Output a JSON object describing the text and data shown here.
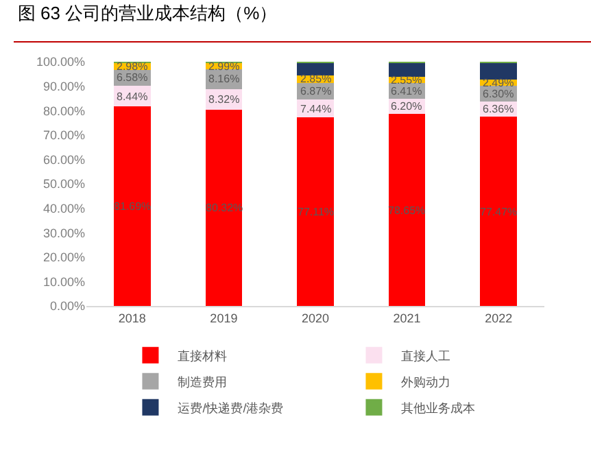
{
  "chart_data": {
    "type": "bar",
    "title": "图 63 公司的营业成本结构（%）",
    "stacked": true,
    "categories": [
      "2018",
      "2019",
      "2020",
      "2021",
      "2022"
    ],
    "ylim": [
      0,
      100
    ],
    "yticks": [
      {
        "value": 0,
        "label": "0.00%"
      },
      {
        "value": 10,
        "label": "10.00%"
      },
      {
        "value": 20,
        "label": "20.00%"
      },
      {
        "value": 30,
        "label": "30.00%"
      },
      {
        "value": 40,
        "label": "40.00%"
      },
      {
        "value": 50,
        "label": "50.00%"
      },
      {
        "value": 60,
        "label": "60.00%"
      },
      {
        "value": 70,
        "label": "70.00%"
      },
      {
        "value": 80,
        "label": "80.00%"
      },
      {
        "value": 90,
        "label": "90.00%"
      },
      {
        "value": 100,
        "label": "100.00%"
      }
    ],
    "grid": false,
    "legend": "bottom",
    "series": [
      {
        "name": "直接材料",
        "color": "#ff0000",
        "values": [
          81.69,
          80.32,
          77.11,
          78.65,
          77.47
        ],
        "value_labels": [
          "81.69%",
          "80.32%",
          "77.11%",
          "78.65%",
          "77.47%"
        ]
      },
      {
        "name": "直接人工",
        "color": "#fbe0ef",
        "values": [
          8.44,
          8.32,
          7.44,
          6.2,
          6.36
        ],
        "value_labels": [
          "8.44%",
          "8.32%",
          "7.44%",
          "6.20%",
          "6.36%"
        ]
      },
      {
        "name": "制造费用",
        "color": "#a6a6a6",
        "values": [
          6.58,
          8.16,
          6.87,
          6.41,
          6.3
        ],
        "value_labels": [
          "6.58%",
          "8.16%",
          "6.87%",
          "6.41%",
          "6.30%"
        ]
      },
      {
        "name": "外购动力",
        "color": "#ffc000",
        "values": [
          2.98,
          2.99,
          2.85,
          2.55,
          2.49
        ],
        "value_labels": [
          "2.98%",
          "2.99%",
          "2.85%",
          "2.55%",
          "2.49%"
        ]
      },
      {
        "name": "运费/快递费/港杂费",
        "color": "#203864",
        "values": [
          0,
          0,
          5.5,
          6.0,
          7.2
        ]
      },
      {
        "name": "其他业务成本",
        "color": "#70ad47",
        "values": [
          0.3,
          0.2,
          0.2,
          0.2,
          0.2
        ]
      }
    ]
  }
}
